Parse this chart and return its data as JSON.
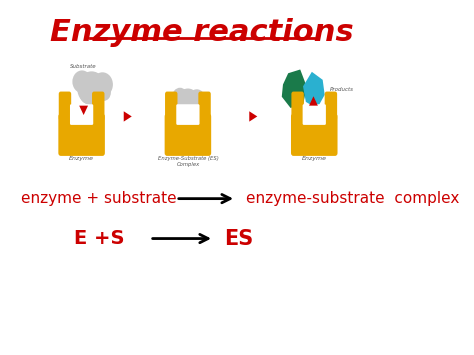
{
  "title": "Enzyme reactions",
  "title_color": "#cc0000",
  "title_fontsize": 22,
  "background_color": "#ffffff",
  "enzyme_color": "#e8a800",
  "substrate_color": "#c8c8c8",
  "product1_color": "#1a7a4a",
  "product2_color": "#2ab0d0",
  "arrow_color": "#cc0000",
  "main_arrow_color": "#000000",
  "label_enzyme": "Enzyme",
  "label_substrate": "Substrate",
  "label_es_complex": "Enzyme-Substrate (ES)\nComplex",
  "label_products": "Products",
  "text_line1_left": "enzyme + substrate",
  "text_line1_right": "enzyme-substrate  complex",
  "text_line2_left": "E +S",
  "text_line2_right": "ES",
  "text_color_red": "#cc0000",
  "small_label_color": "#555555"
}
